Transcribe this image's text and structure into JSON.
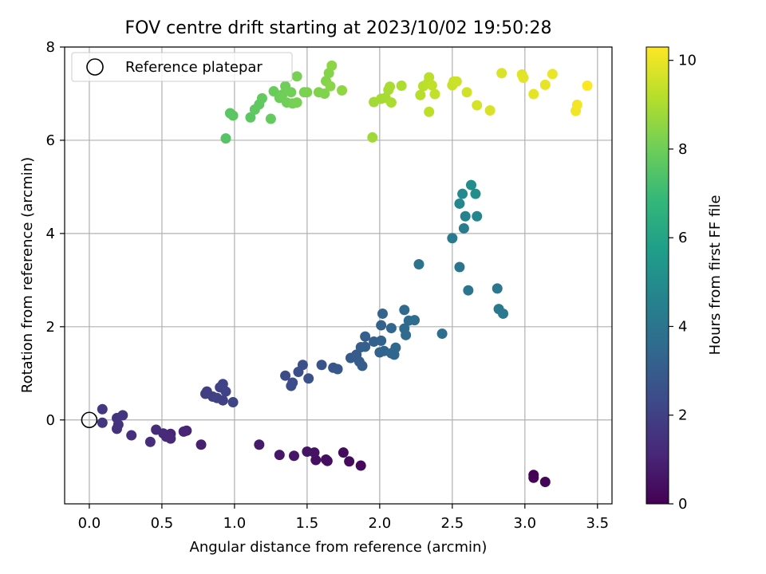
{
  "chart_data": {
    "type": "scatter",
    "title": "FOV centre drift starting at 2023/10/02 19:50:28",
    "xlabel": "Angular distance from reference (arcmin)",
    "ylabel": "Rotation from reference (arcmin)",
    "xlim": [
      -0.17,
      3.6
    ],
    "ylim": [
      -1.8,
      8.0
    ],
    "xticks": [
      "0.0",
      "0.5",
      "1.0",
      "1.5",
      "2.0",
      "2.5",
      "3.0",
      "3.5"
    ],
    "xtick_values": [
      0,
      0.5,
      1.0,
      1.5,
      2.0,
      2.5,
      3.0,
      3.5
    ],
    "yticks": [
      "0",
      "2",
      "4",
      "6",
      "8"
    ],
    "ytick_values": [
      0,
      2,
      4,
      6,
      8
    ],
    "grid": true,
    "legend": {
      "placement": "top-left",
      "entries": [
        "Reference platepar"
      ]
    },
    "reference_point": {
      "x": 0.0,
      "y": 0.0
    },
    "colorbar": {
      "label": "Hours from first FF file",
      "range": [
        0,
        10.3
      ],
      "ticks": [
        "0",
        "2",
        "4",
        "6",
        "8",
        "10"
      ],
      "tick_values": [
        0,
        2,
        4,
        6,
        8,
        10
      ],
      "colormap": "viridis",
      "colors": [
        "#440154",
        "#482878",
        "#3e4989",
        "#31688e",
        "#26828e",
        "#1f9e89",
        "#35b779",
        "#6ece58",
        "#b5de2b",
        "#fde725"
      ]
    },
    "points": [
      {
        "x": 3.06,
        "y": -1.18,
        "t": 0.0
      },
      {
        "x": 3.06,
        "y": -1.24,
        "t": 0.05
      },
      {
        "x": 3.14,
        "y": -1.33,
        "t": 0.1
      },
      {
        "x": 1.87,
        "y": -0.98,
        "t": 0.2
      },
      {
        "x": 1.79,
        "y": -0.89,
        "t": 0.25
      },
      {
        "x": 1.75,
        "y": -0.7,
        "t": 0.3
      },
      {
        "x": 1.63,
        "y": -0.85,
        "t": 0.35
      },
      {
        "x": 1.64,
        "y": -0.88,
        "t": 0.4
      },
      {
        "x": 1.56,
        "y": -0.86,
        "t": 0.45
      },
      {
        "x": 1.55,
        "y": -0.7,
        "t": 0.5
      },
      {
        "x": 1.5,
        "y": -0.68,
        "t": 0.55
      },
      {
        "x": 1.41,
        "y": -0.77,
        "t": 0.6
      },
      {
        "x": 1.31,
        "y": -0.75,
        "t": 0.65
      },
      {
        "x": 1.17,
        "y": -0.53,
        "t": 0.75
      },
      {
        "x": 0.77,
        "y": -0.53,
        "t": 0.9
      },
      {
        "x": 0.67,
        "y": -0.23,
        "t": 1.0
      },
      {
        "x": 0.65,
        "y": -0.25,
        "t": 1.05
      },
      {
        "x": 0.56,
        "y": -0.3,
        "t": 1.1
      },
      {
        "x": 0.56,
        "y": -0.4,
        "t": 1.15
      },
      {
        "x": 0.53,
        "y": -0.36,
        "t": 1.2
      },
      {
        "x": 0.51,
        "y": -0.29,
        "t": 1.25
      },
      {
        "x": 0.46,
        "y": -0.21,
        "t": 1.3
      },
      {
        "x": 0.42,
        "y": -0.47,
        "t": 1.35
      },
      {
        "x": 0.29,
        "y": -0.33,
        "t": 1.4
      },
      {
        "x": 0.19,
        "y": -0.19,
        "t": 1.45
      },
      {
        "x": 0.2,
        "y": -0.1,
        "t": 1.5
      },
      {
        "x": 0.19,
        "y": 0.04,
        "t": 1.55
      },
      {
        "x": 0.23,
        "y": 0.1,
        "t": 1.6
      },
      {
        "x": 0.09,
        "y": -0.06,
        "t": 1.62
      },
      {
        "x": 0.09,
        "y": 0.23,
        "t": 1.65
      },
      {
        "x": 0.8,
        "y": 0.56,
        "t": 1.9
      },
      {
        "x": 0.81,
        "y": 0.61,
        "t": 1.92
      },
      {
        "x": 0.85,
        "y": 0.5,
        "t": 1.95
      },
      {
        "x": 0.88,
        "y": 0.47,
        "t": 2.0
      },
      {
        "x": 0.92,
        "y": 0.42,
        "t": 2.02
      },
      {
        "x": 0.9,
        "y": 0.7,
        "t": 2.05
      },
      {
        "x": 0.92,
        "y": 0.77,
        "t": 2.08
      },
      {
        "x": 0.94,
        "y": 0.61,
        "t": 2.1
      },
      {
        "x": 0.99,
        "y": 0.38,
        "t": 2.12
      },
      {
        "x": 1.35,
        "y": 0.95,
        "t": 2.4
      },
      {
        "x": 1.39,
        "y": 0.73,
        "t": 2.42
      },
      {
        "x": 1.4,
        "y": 0.8,
        "t": 2.45
      },
      {
        "x": 1.44,
        "y": 1.03,
        "t": 2.5
      },
      {
        "x": 1.47,
        "y": 1.18,
        "t": 2.55
      },
      {
        "x": 1.51,
        "y": 0.89,
        "t": 2.6
      },
      {
        "x": 1.6,
        "y": 1.18,
        "t": 2.7
      },
      {
        "x": 1.68,
        "y": 1.12,
        "t": 2.75
      },
      {
        "x": 1.71,
        "y": 1.09,
        "t": 2.8
      },
      {
        "x": 1.8,
        "y": 1.33,
        "t": 2.9
      },
      {
        "x": 1.84,
        "y": 1.4,
        "t": 2.95
      },
      {
        "x": 1.86,
        "y": 1.25,
        "t": 3.0
      },
      {
        "x": 1.88,
        "y": 1.16,
        "t": 3.02
      },
      {
        "x": 1.87,
        "y": 1.56,
        "t": 3.05
      },
      {
        "x": 1.9,
        "y": 1.79,
        "t": 3.1
      },
      {
        "x": 1.9,
        "y": 1.57,
        "t": 3.12
      },
      {
        "x": 1.96,
        "y": 1.68,
        "t": 3.15
      },
      {
        "x": 2.0,
        "y": 1.45,
        "t": 3.2
      },
      {
        "x": 2.01,
        "y": 1.7,
        "t": 3.22
      },
      {
        "x": 2.01,
        "y": 2.03,
        "t": 3.25
      },
      {
        "x": 2.02,
        "y": 2.28,
        "t": 3.3
      },
      {
        "x": 2.03,
        "y": 1.48,
        "t": 3.32
      },
      {
        "x": 2.08,
        "y": 1.97,
        "t": 3.35
      },
      {
        "x": 2.08,
        "y": 1.43,
        "t": 3.38
      },
      {
        "x": 2.1,
        "y": 1.4,
        "t": 3.4
      },
      {
        "x": 2.11,
        "y": 1.55,
        "t": 3.42
      },
      {
        "x": 2.17,
        "y": 2.36,
        "t": 3.5
      },
      {
        "x": 2.17,
        "y": 1.96,
        "t": 3.52
      },
      {
        "x": 2.18,
        "y": 1.82,
        "t": 3.55
      },
      {
        "x": 2.2,
        "y": 2.13,
        "t": 3.58
      },
      {
        "x": 2.24,
        "y": 2.14,
        "t": 3.6
      },
      {
        "x": 2.27,
        "y": 3.34,
        "t": 3.9
      },
      {
        "x": 2.43,
        "y": 1.85,
        "t": 3.7
      },
      {
        "x": 2.5,
        "y": 3.9,
        "t": 4.2
      },
      {
        "x": 2.55,
        "y": 3.28,
        "t": 4.0
      },
      {
        "x": 2.58,
        "y": 4.11,
        "t": 4.3
      },
      {
        "x": 2.61,
        "y": 2.78,
        "t": 4.0
      },
      {
        "x": 2.81,
        "y": 2.82,
        "t": 4.1
      },
      {
        "x": 2.82,
        "y": 2.38,
        "t": 4.15
      },
      {
        "x": 2.85,
        "y": 2.28,
        "t": 4.18
      },
      {
        "x": 2.55,
        "y": 4.64,
        "t": 4.8
      },
      {
        "x": 2.57,
        "y": 4.85,
        "t": 4.9
      },
      {
        "x": 2.59,
        "y": 4.37,
        "t": 4.6
      },
      {
        "x": 2.63,
        "y": 5.04,
        "t": 5.0
      },
      {
        "x": 2.66,
        "y": 4.85,
        "t": 5.05
      },
      {
        "x": 2.67,
        "y": 4.37,
        "t": 4.7
      },
      {
        "x": 0.94,
        "y": 6.04,
        "t": 7.5
      },
      {
        "x": 0.97,
        "y": 6.58,
        "t": 7.6
      },
      {
        "x": 0.99,
        "y": 6.53,
        "t": 7.62
      },
      {
        "x": 1.11,
        "y": 6.49,
        "t": 7.65
      },
      {
        "x": 1.14,
        "y": 6.66,
        "t": 7.7
      },
      {
        "x": 1.17,
        "y": 6.77,
        "t": 7.72
      },
      {
        "x": 1.19,
        "y": 6.9,
        "t": 7.75
      },
      {
        "x": 1.25,
        "y": 6.46,
        "t": 7.8
      },
      {
        "x": 1.27,
        "y": 7.05,
        "t": 7.9
      },
      {
        "x": 1.31,
        "y": 6.91,
        "t": 7.95
      },
      {
        "x": 1.33,
        "y": 6.98,
        "t": 8.0
      },
      {
        "x": 1.35,
        "y": 7.16,
        "t": 8.02
      },
      {
        "x": 1.36,
        "y": 6.81,
        "t": 8.05
      },
      {
        "x": 1.39,
        "y": 7.03,
        "t": 8.08
      },
      {
        "x": 1.4,
        "y": 6.79,
        "t": 8.1
      },
      {
        "x": 1.43,
        "y": 7.37,
        "t": 8.12
      },
      {
        "x": 1.43,
        "y": 6.81,
        "t": 8.15
      },
      {
        "x": 1.48,
        "y": 7.03,
        "t": 8.2
      },
      {
        "x": 1.5,
        "y": 7.03,
        "t": 8.22
      },
      {
        "x": 1.58,
        "y": 7.03,
        "t": 8.3
      },
      {
        "x": 1.62,
        "y": 7.0,
        "t": 8.32
      },
      {
        "x": 1.63,
        "y": 7.27,
        "t": 8.35
      },
      {
        "x": 1.65,
        "y": 7.44,
        "t": 8.38
      },
      {
        "x": 1.66,
        "y": 7.16,
        "t": 8.45
      },
      {
        "x": 1.67,
        "y": 7.6,
        "t": 8.5
      },
      {
        "x": 1.74,
        "y": 7.07,
        "t": 8.55
      },
      {
        "x": 1.95,
        "y": 6.06,
        "t": 8.8
      },
      {
        "x": 1.96,
        "y": 6.82,
        "t": 8.85
      },
      {
        "x": 2.01,
        "y": 6.89,
        "t": 8.9
      },
      {
        "x": 2.04,
        "y": 6.91,
        "t": 8.92
      },
      {
        "x": 2.06,
        "y": 7.08,
        "t": 8.95
      },
      {
        "x": 2.07,
        "y": 7.15,
        "t": 8.97
      },
      {
        "x": 2.08,
        "y": 6.81,
        "t": 9.0
      },
      {
        "x": 2.15,
        "y": 7.17,
        "t": 9.05
      },
      {
        "x": 2.28,
        "y": 6.97,
        "t": 9.2
      },
      {
        "x": 2.3,
        "y": 7.16,
        "t": 9.22
      },
      {
        "x": 2.33,
        "y": 7.22,
        "t": 9.25
      },
      {
        "x": 2.34,
        "y": 7.35,
        "t": 9.27
      },
      {
        "x": 2.34,
        "y": 6.61,
        "t": 9.3
      },
      {
        "x": 2.36,
        "y": 7.18,
        "t": 9.32
      },
      {
        "x": 2.38,
        "y": 6.99,
        "t": 9.35
      },
      {
        "x": 2.5,
        "y": 7.18,
        "t": 9.45
      },
      {
        "x": 2.51,
        "y": 7.26,
        "t": 9.5
      },
      {
        "x": 2.53,
        "y": 7.26,
        "t": 9.52
      },
      {
        "x": 2.6,
        "y": 7.03,
        "t": 9.6
      },
      {
        "x": 2.67,
        "y": 6.75,
        "t": 9.65
      },
      {
        "x": 2.76,
        "y": 6.64,
        "t": 9.7
      },
      {
        "x": 2.84,
        "y": 7.44,
        "t": 9.75
      },
      {
        "x": 2.98,
        "y": 7.41,
        "t": 9.85
      },
      {
        "x": 2.99,
        "y": 7.34,
        "t": 9.87
      },
      {
        "x": 3.06,
        "y": 6.99,
        "t": 9.9
      },
      {
        "x": 3.14,
        "y": 7.19,
        "t": 9.95
      },
      {
        "x": 3.19,
        "y": 7.42,
        "t": 10.0
      },
      {
        "x": 3.35,
        "y": 6.63,
        "t": 10.1
      },
      {
        "x": 3.36,
        "y": 6.76,
        "t": 10.15
      },
      {
        "x": 3.43,
        "y": 7.17,
        "t": 10.3
      }
    ]
  }
}
